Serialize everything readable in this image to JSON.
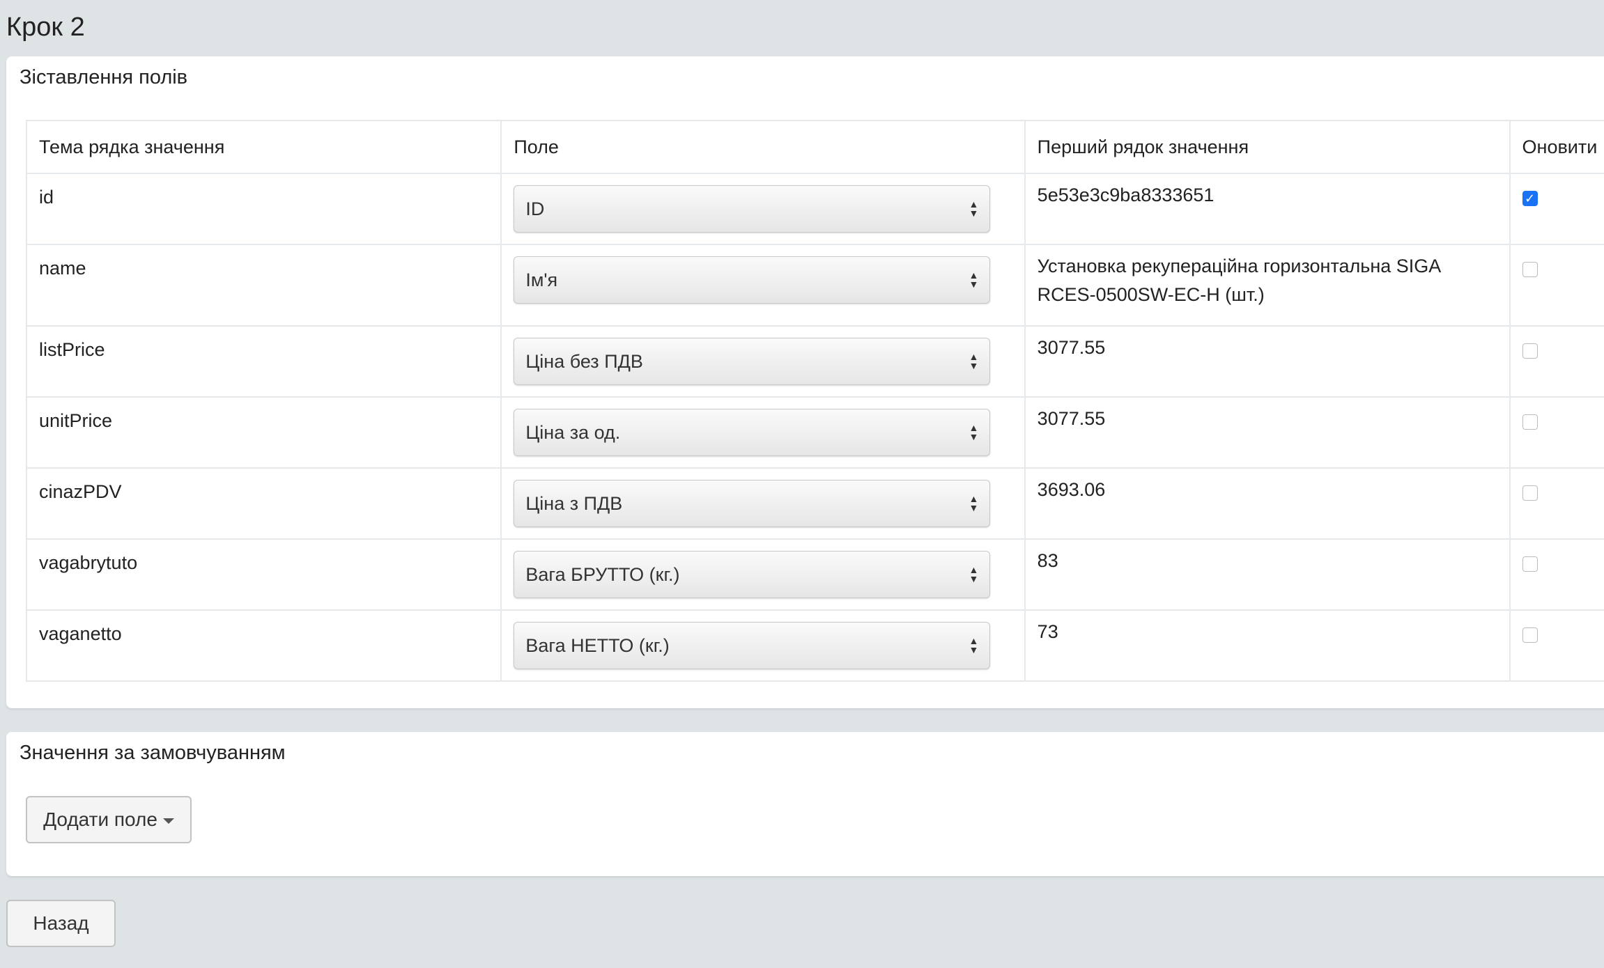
{
  "step_title": "Крок 2",
  "mapping": {
    "title": "Зіставлення полів",
    "headers": [
      "Тема рядка значення",
      "Поле",
      "Перший рядок значення",
      "Оновити"
    ],
    "rows": [
      {
        "source": "id",
        "field": "ID",
        "first_value": "5e53e3c9ba8333651",
        "update": true
      },
      {
        "source": "name",
        "field": "Ім'я",
        "first_value": "Установка рекупераційна горизонтальна SIGA RCES-0500SW-EC-H (шт.)",
        "update": false
      },
      {
        "source": "listPrice",
        "field": "Ціна без ПДВ",
        "first_value": "3077.55",
        "update": false
      },
      {
        "source": "unitPrice",
        "field": "Ціна за од.",
        "first_value": "3077.55",
        "update": false
      },
      {
        "source": "cinazPDV",
        "field": "Ціна з ПДВ",
        "first_value": "3693.06",
        "update": false
      },
      {
        "source": "vagabrytuto",
        "field": "Вага БРУТТО (кг.)",
        "first_value": "83",
        "update": false
      },
      {
        "source": "vaganetto",
        "field": "Вага НЕТТО (кг.)",
        "first_value": "73",
        "update": false
      }
    ]
  },
  "defaults": {
    "title": "Значення за замовчуванням",
    "add_field_label": "Додати поле"
  },
  "back_label": "Назад",
  "colors": {
    "checkbox_checked": "#1a73f5",
    "background": "#dee3e6"
  }
}
